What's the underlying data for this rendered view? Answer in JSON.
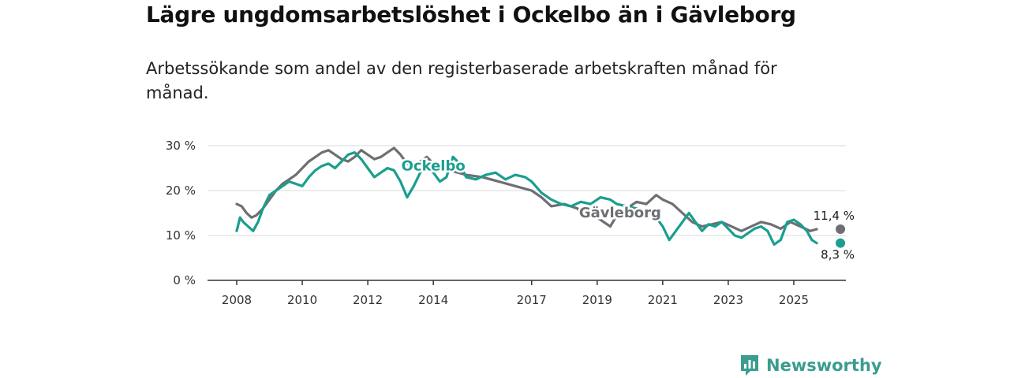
{
  "header": {
    "title": "Lägre ungdomsarbetslöshet i Ockelbo än i Gävleborg",
    "subtitle": "Arbetssökande som andel av den registerbaserade arbetskraften månad för månad."
  },
  "brand": {
    "name": "Newsworthy",
    "icon": "newsworthy-logo-icon",
    "color": "#3a9d90"
  },
  "chart_data": {
    "type": "line",
    "title": "Lägre ungdomsarbetslöshet i Ockelbo än i Gävleborg",
    "subtitle": "Arbetssökande som andel av den registerbaserade arbetskraften månad för månad.",
    "xlabel": "",
    "ylabel": "",
    "xlim": [
      2008.0,
      2026.0
    ],
    "ylim": [
      0,
      30
    ],
    "yticks": [
      0,
      10,
      20,
      30
    ],
    "ytick_labels": [
      "0 %",
      "10 %",
      "20 %",
      "30 %"
    ],
    "xticks": [
      2008,
      2010,
      2012,
      2014,
      2017,
      2019,
      2021,
      2023,
      2025
    ],
    "xtick_labels": [
      "2008",
      "2010",
      "2012",
      "2014",
      "2017",
      "2019",
      "2021",
      "2023",
      "2025"
    ],
    "grid": true,
    "series": [
      {
        "name": "Gävleborg",
        "color": "#6e6e73",
        "end_value": 11.4,
        "end_label": "11,4 %",
        "points": [
          [
            2008.0,
            17
          ],
          [
            2008.15,
            16.5
          ],
          [
            2008.3,
            15
          ],
          [
            2008.45,
            14
          ],
          [
            2008.6,
            14.5
          ],
          [
            2008.8,
            16
          ],
          [
            2009.0,
            18
          ],
          [
            2009.2,
            20
          ],
          [
            2009.4,
            21.5
          ],
          [
            2009.6,
            22.5
          ],
          [
            2009.8,
            23.5
          ],
          [
            2010.0,
            25
          ],
          [
            2010.2,
            26.5
          ],
          [
            2010.4,
            27.5
          ],
          [
            2010.6,
            28.5
          ],
          [
            2010.8,
            29
          ],
          [
            2011.0,
            28
          ],
          [
            2011.2,
            27
          ],
          [
            2011.4,
            26.5
          ],
          [
            2011.6,
            27.5
          ],
          [
            2011.8,
            29
          ],
          [
            2012.0,
            28
          ],
          [
            2012.2,
            27
          ],
          [
            2012.4,
            27.5
          ],
          [
            2012.6,
            28.5
          ],
          [
            2012.8,
            29.5
          ],
          [
            2013.0,
            28
          ],
          [
            2013.2,
            26
          ],
          [
            2013.4,
            25.5
          ],
          [
            2013.6,
            26.5
          ],
          [
            2013.8,
            27.5
          ],
          [
            2014.0,
            26
          ],
          [
            2014.5,
            24.5
          ],
          [
            2015.0,
            23.5
          ],
          [
            2015.5,
            23
          ],
          [
            2016.0,
            22
          ],
          [
            2016.5,
            21
          ],
          [
            2017.0,
            20
          ],
          [
            2017.3,
            18.5
          ],
          [
            2017.6,
            16.5
          ],
          [
            2018.0,
            17
          ],
          [
            2018.4,
            16
          ],
          [
            2018.6,
            14
          ],
          [
            2018.9,
            14.5
          ],
          [
            2019.2,
            13
          ],
          [
            2019.4,
            12
          ],
          [
            2019.6,
            14.5
          ],
          [
            2019.9,
            16
          ],
          [
            2020.2,
            17.5
          ],
          [
            2020.5,
            17
          ],
          [
            2020.8,
            19
          ],
          [
            2021.0,
            18
          ],
          [
            2021.3,
            17
          ],
          [
            2021.6,
            15
          ],
          [
            2021.9,
            13
          ],
          [
            2022.2,
            12
          ],
          [
            2022.5,
            12.5
          ],
          [
            2022.8,
            13
          ],
          [
            2023.1,
            12
          ],
          [
            2023.4,
            11
          ],
          [
            2023.7,
            12
          ],
          [
            2024.0,
            13
          ],
          [
            2024.3,
            12.5
          ],
          [
            2024.6,
            11.5
          ],
          [
            2024.9,
            13
          ],
          [
            2025.2,
            12
          ],
          [
            2025.5,
            11
          ],
          [
            2025.7,
            11.4
          ]
        ]
      },
      {
        "name": "Ockelbo",
        "color": "#1a9e8f",
        "end_value": 8.3,
        "end_label": "8,3 %",
        "points": [
          [
            2008.0,
            11
          ],
          [
            2008.1,
            14
          ],
          [
            2008.2,
            13
          ],
          [
            2008.35,
            12
          ],
          [
            2008.5,
            11
          ],
          [
            2008.65,
            13
          ],
          [
            2008.8,
            16
          ],
          [
            2009.0,
            19
          ],
          [
            2009.2,
            20
          ],
          [
            2009.4,
            21
          ],
          [
            2009.6,
            22
          ],
          [
            2009.8,
            21.5
          ],
          [
            2010.0,
            21
          ],
          [
            2010.2,
            23
          ],
          [
            2010.4,
            24.5
          ],
          [
            2010.6,
            25.5
          ],
          [
            2010.8,
            26
          ],
          [
            2011.0,
            25
          ],
          [
            2011.2,
            26.5
          ],
          [
            2011.4,
            28
          ],
          [
            2011.6,
            28.5
          ],
          [
            2011.8,
            27
          ],
          [
            2012.0,
            25
          ],
          [
            2012.2,
            23
          ],
          [
            2012.4,
            24
          ],
          [
            2012.6,
            25
          ],
          [
            2012.8,
            24.5
          ],
          [
            2013.0,
            22
          ],
          [
            2013.2,
            18.5
          ],
          [
            2013.4,
            21
          ],
          [
            2013.6,
            24
          ],
          [
            2013.8,
            25.5
          ],
          [
            2014.0,
            24
          ],
          [
            2014.2,
            22
          ],
          [
            2014.4,
            23
          ],
          [
            2014.6,
            27.5
          ],
          [
            2014.8,
            26
          ],
          [
            2015.0,
            23
          ],
          [
            2015.3,
            22.5
          ],
          [
            2015.6,
            23.5
          ],
          [
            2015.9,
            24
          ],
          [
            2016.2,
            22.5
          ],
          [
            2016.5,
            23.5
          ],
          [
            2016.8,
            23
          ],
          [
            2017.0,
            22
          ],
          [
            2017.3,
            19.5
          ],
          [
            2017.6,
            18
          ],
          [
            2017.9,
            17
          ],
          [
            2018.2,
            16.5
          ],
          [
            2018.5,
            17.5
          ],
          [
            2018.8,
            17
          ],
          [
            2019.1,
            18.5
          ],
          [
            2019.4,
            18
          ],
          [
            2019.6,
            17
          ],
          [
            2019.9,
            16.5
          ],
          [
            2020.2,
            16
          ],
          [
            2020.5,
            15.5
          ],
          [
            2020.8,
            14
          ],
          [
            2021.0,
            12
          ],
          [
            2021.2,
            9
          ],
          [
            2021.4,
            11
          ],
          [
            2021.6,
            13
          ],
          [
            2021.8,
            15
          ],
          [
            2022.0,
            13
          ],
          [
            2022.2,
            11
          ],
          [
            2022.4,
            12.5
          ],
          [
            2022.6,
            12
          ],
          [
            2022.8,
            13
          ],
          [
            2023.0,
            11.5
          ],
          [
            2023.2,
            10
          ],
          [
            2023.4,
            9.5
          ],
          [
            2023.6,
            10.5
          ],
          [
            2023.8,
            11.5
          ],
          [
            2024.0,
            12
          ],
          [
            2024.2,
            11
          ],
          [
            2024.4,
            8
          ],
          [
            2024.6,
            9
          ],
          [
            2024.8,
            13
          ],
          [
            2025.0,
            13.5
          ],
          [
            2025.2,
            12.5
          ],
          [
            2025.4,
            11
          ],
          [
            2025.55,
            9
          ],
          [
            2025.7,
            8.3
          ]
        ]
      }
    ]
  }
}
